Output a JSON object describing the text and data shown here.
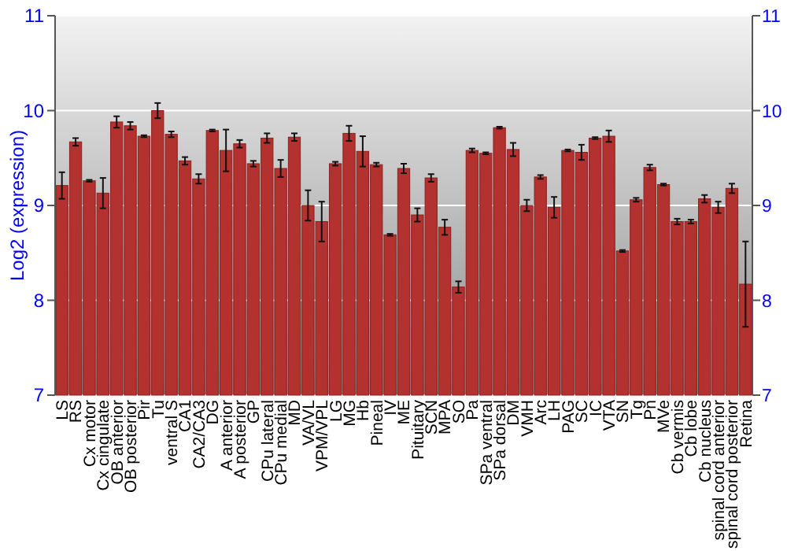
{
  "chart_data": {
    "type": "bar",
    "ylabel": "Log2 (expression)",
    "categories": [
      "LS",
      "RS",
      "Cx motor",
      "Cx cingulate",
      "OB anterior",
      "OB posterior",
      "Pir",
      "Tu",
      "ventral S",
      "CA1",
      "CA2/CA3",
      "DG",
      "A anterior",
      "A posterior",
      "GP",
      "CPu lateral",
      "CPu medial",
      "MD",
      "VA/VL",
      "VPM/VPL",
      "LG",
      "MG",
      "Hb",
      "Pineal",
      "IV",
      "ME",
      "Pituitary",
      "SCN",
      "MPA",
      "SO",
      "Pa",
      "SPa ventral",
      "SPa dorsal",
      "DM",
      "VMH",
      "Arc",
      "LH",
      "PAG",
      "SC",
      "IC",
      "VTA",
      "SN",
      "Tg",
      "Pn",
      "MVe",
      "Cb vermis",
      "Cb lobe",
      "Cb nucleus",
      "spinal cord anterior",
      "spinal cord posterior",
      "Retina"
    ],
    "values": [
      9.21,
      9.67,
      9.26,
      9.13,
      9.88,
      9.84,
      9.73,
      10.0,
      9.75,
      9.47,
      9.28,
      9.79,
      9.58,
      9.65,
      9.44,
      9.71,
      9.39,
      9.72,
      9.0,
      8.83,
      9.44,
      9.76,
      9.57,
      9.43,
      8.69,
      9.39,
      8.9,
      9.29,
      8.77,
      8.14,
      9.58,
      9.55,
      9.82,
      9.59,
      9.0,
      9.3,
      8.98,
      9.58,
      9.56,
      9.71,
      9.73,
      8.52,
      9.06,
      9.4,
      9.22,
      8.83,
      8.83,
      9.07,
      8.98,
      9.18,
      8.17
    ],
    "errors": [
      0.14,
      0.04,
      0.01,
      0.16,
      0.06,
      0.04,
      0.01,
      0.08,
      0.03,
      0.04,
      0.05,
      0.01,
      0.22,
      0.04,
      0.03,
      0.05,
      0.09,
      0.04,
      0.16,
      0.21,
      0.02,
      0.08,
      0.16,
      0.02,
      0.01,
      0.05,
      0.07,
      0.04,
      0.08,
      0.06,
      0.02,
      0.01,
      0.01,
      0.07,
      0.06,
      0.02,
      0.11,
      0.01,
      0.08,
      0.01,
      0.06,
      0.01,
      0.02,
      0.03,
      0.01,
      0.03,
      0.02,
      0.04,
      0.06,
      0.05,
      0.45
    ],
    "color": "#b3312e",
    "ylim": [
      7,
      11
    ],
    "yticks": [
      7,
      8,
      9,
      10,
      11
    ],
    "y2lim": [
      7,
      11
    ],
    "y2ticks": [
      7,
      8,
      9,
      10,
      11
    ],
    "grid": "y"
  }
}
